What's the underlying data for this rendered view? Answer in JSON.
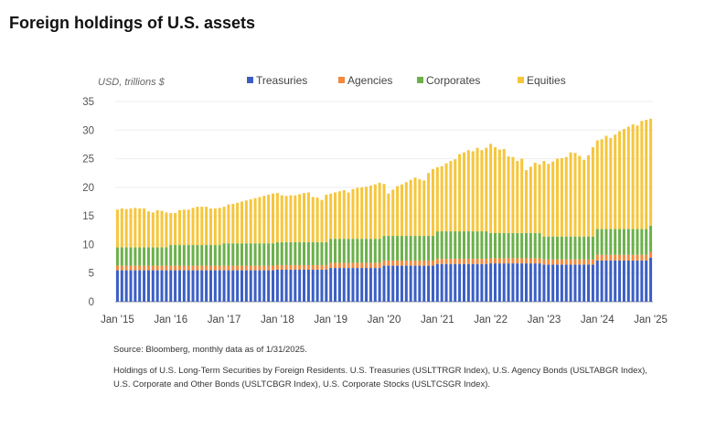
{
  "title": "Foreign holdings of U.S. assets",
  "source": "Source: Bloomberg, monthly data as of 1/31/2025.",
  "footnote": "Holdings of U.S. Long-Term Securities by Foreign Residents. U.S. Treasuries (USLTTRGR Index), U.S. Agency Bonds (USLTABGR Index), U.S. Corporate and Other Bonds (USLTCBGR Index), U.S. Corporate Stocks (USLTCSGR Index).",
  "chart_data": {
    "type": "bar",
    "stacked": true,
    "ylabel": "USD, trillions $",
    "ylim": [
      0,
      35
    ],
    "yticks": [
      "0",
      "5",
      "10",
      "15",
      "20",
      "25",
      "30",
      "35"
    ],
    "xtick_labels": [
      "Jan '15",
      "Jan '16",
      "Jan '17",
      "Jan '18",
      "Jan '19",
      "Jan '20",
      "Jan '21",
      "Jan '22",
      "Jan '23",
      "Jan '24",
      "Jan '25"
    ],
    "x_start": "2015-01",
    "x_end": "2025-01",
    "frequency": "monthly",
    "grid": true,
    "legend_position": "top",
    "series": [
      {
        "name": "Treasuries",
        "color": "#3b5fc4",
        "values": [
          5.5,
          5.5,
          5.5,
          5.5,
          5.5,
          5.5,
          5.5,
          5.5,
          5.5,
          5.5,
          5.5,
          5.5,
          5.5,
          5.5,
          5.5,
          5.5,
          5.5,
          5.5,
          5.5,
          5.5,
          5.5,
          5.5,
          5.5,
          5.5,
          5.5,
          5.5,
          5.5,
          5.5,
          5.5,
          5.5,
          5.5,
          5.5,
          5.5,
          5.5,
          5.5,
          5.5,
          5.6,
          5.6,
          5.6,
          5.6,
          5.6,
          5.6,
          5.6,
          5.6,
          5.6,
          5.6,
          5.6,
          5.6,
          5.9,
          5.9,
          5.9,
          5.9,
          5.9,
          5.9,
          5.9,
          5.9,
          5.9,
          5.9,
          5.9,
          5.9,
          6.3,
          6.3,
          6.3,
          6.3,
          6.3,
          6.3,
          6.3,
          6.3,
          6.3,
          6.3,
          6.3,
          6.3,
          6.6,
          6.6,
          6.6,
          6.6,
          6.6,
          6.6,
          6.6,
          6.6,
          6.6,
          6.6,
          6.6,
          6.6,
          6.7,
          6.7,
          6.7,
          6.7,
          6.7,
          6.7,
          6.7,
          6.7,
          6.7,
          6.7,
          6.7,
          6.7,
          6.5,
          6.5,
          6.5,
          6.5,
          6.5,
          6.5,
          6.5,
          6.5,
          6.5,
          6.5,
          6.5,
          6.5,
          7.2,
          7.2,
          7.2,
          7.2,
          7.2,
          7.2,
          7.2,
          7.2,
          7.2,
          7.2,
          7.2,
          7.2,
          7.7
        ]
      },
      {
        "name": "Agencies",
        "color": "#f08a3c",
        "values": [
          0.8,
          0.8,
          0.8,
          0.8,
          0.8,
          0.8,
          0.8,
          0.8,
          0.8,
          0.8,
          0.8,
          0.8,
          0.8,
          0.8,
          0.8,
          0.8,
          0.8,
          0.8,
          0.8,
          0.8,
          0.8,
          0.8,
          0.8,
          0.8,
          0.8,
          0.8,
          0.8,
          0.8,
          0.8,
          0.8,
          0.8,
          0.8,
          0.8,
          0.8,
          0.8,
          0.8,
          0.8,
          0.8,
          0.8,
          0.8,
          0.8,
          0.8,
          0.8,
          0.8,
          0.8,
          0.8,
          0.8,
          0.8,
          0.9,
          0.9,
          0.9,
          0.9,
          0.9,
          0.9,
          0.9,
          0.9,
          0.9,
          0.9,
          0.9,
          0.9,
          0.9,
          0.9,
          0.9,
          0.9,
          0.9,
          0.9,
          0.9,
          0.9,
          0.9,
          0.9,
          0.9,
          0.9,
          0.9,
          0.9,
          0.9,
          0.9,
          0.9,
          0.9,
          0.9,
          0.9,
          0.9,
          0.9,
          0.9,
          0.9,
          0.9,
          0.9,
          0.9,
          0.9,
          0.9,
          0.9,
          0.9,
          0.9,
          0.9,
          0.9,
          0.9,
          0.9,
          0.9,
          0.9,
          0.9,
          0.9,
          0.9,
          0.9,
          0.9,
          0.9,
          0.9,
          0.9,
          0.9,
          0.9,
          1.0,
          1.0,
          1.0,
          1.0,
          1.0,
          1.0,
          1.0,
          1.0,
          1.0,
          1.0,
          1.0,
          1.0,
          1.0
        ]
      },
      {
        "name": "Corporates",
        "color": "#6cb04a",
        "values": [
          3.2,
          3.2,
          3.2,
          3.2,
          3.2,
          3.2,
          3.2,
          3.2,
          3.2,
          3.2,
          3.2,
          3.2,
          3.6,
          3.6,
          3.6,
          3.6,
          3.6,
          3.6,
          3.6,
          3.6,
          3.6,
          3.6,
          3.6,
          3.6,
          3.9,
          3.9,
          3.9,
          3.9,
          3.9,
          3.9,
          3.9,
          3.9,
          3.9,
          3.9,
          3.9,
          3.9,
          4.0,
          4.0,
          4.0,
          4.0,
          4.0,
          4.0,
          4.0,
          4.0,
          4.0,
          4.0,
          4.0,
          4.0,
          4.2,
          4.2,
          4.2,
          4.2,
          4.2,
          4.2,
          4.2,
          4.2,
          4.2,
          4.2,
          4.2,
          4.2,
          4.3,
          4.3,
          4.3,
          4.3,
          4.3,
          4.3,
          4.3,
          4.3,
          4.3,
          4.3,
          4.3,
          4.3,
          4.8,
          4.8,
          4.8,
          4.8,
          4.8,
          4.8,
          4.8,
          4.8,
          4.8,
          4.8,
          4.8,
          4.8,
          4.4,
          4.4,
          4.4,
          4.4,
          4.4,
          4.4,
          4.4,
          4.4,
          4.4,
          4.4,
          4.4,
          4.4,
          4.0,
          4.0,
          4.0,
          4.0,
          4.0,
          4.0,
          4.0,
          4.0,
          4.0,
          4.0,
          4.0,
          4.0,
          4.5,
          4.5,
          4.5,
          4.5,
          4.5,
          4.5,
          4.5,
          4.5,
          4.5,
          4.5,
          4.5,
          4.5,
          4.6
        ]
      },
      {
        "name": "Equities",
        "color": "#f6c63c",
        "values": [
          6.6,
          6.8,
          6.7,
          6.8,
          6.9,
          6.8,
          6.8,
          6.3,
          6.1,
          6.5,
          6.4,
          6.1,
          5.6,
          5.6,
          6.1,
          6.2,
          6.2,
          6.5,
          6.7,
          6.7,
          6.7,
          6.4,
          6.4,
          6.5,
          6.4,
          6.8,
          6.9,
          7.1,
          7.3,
          7.5,
          7.7,
          7.9,
          8.1,
          8.3,
          8.5,
          8.7,
          8.6,
          8.2,
          8.1,
          8.2,
          8.2,
          8.4,
          8.6,
          8.7,
          7.9,
          7.8,
          7.4,
          8.3,
          7.9,
          8.1,
          8.3,
          8.5,
          8.1,
          8.7,
          8.9,
          9.0,
          9.1,
          9.3,
          9.5,
          9.8,
          9.1,
          7.4,
          8.1,
          8.7,
          9.0,
          9.4,
          9.8,
          10.2,
          9.9,
          9.7,
          11.0,
          11.7,
          11.2,
          11.4,
          11.9,
          12.3,
          12.6,
          13.5,
          13.8,
          14.2,
          14.0,
          14.6,
          14.2,
          14.6,
          15.6,
          15.0,
          14.6,
          14.7,
          13.4,
          13.3,
          12.6,
          13.0,
          11.0,
          11.6,
          12.3,
          12.0,
          13.2,
          12.7,
          13.1,
          13.6,
          13.7,
          13.9,
          14.7,
          14.6,
          14.1,
          13.4,
          14.2,
          15.6,
          15.5,
          15.7,
          16.3,
          15.9,
          16.5,
          17.1,
          17.5,
          17.9,
          18.3,
          18.1,
          18.9,
          19.1,
          18.7
        ]
      }
    ]
  }
}
